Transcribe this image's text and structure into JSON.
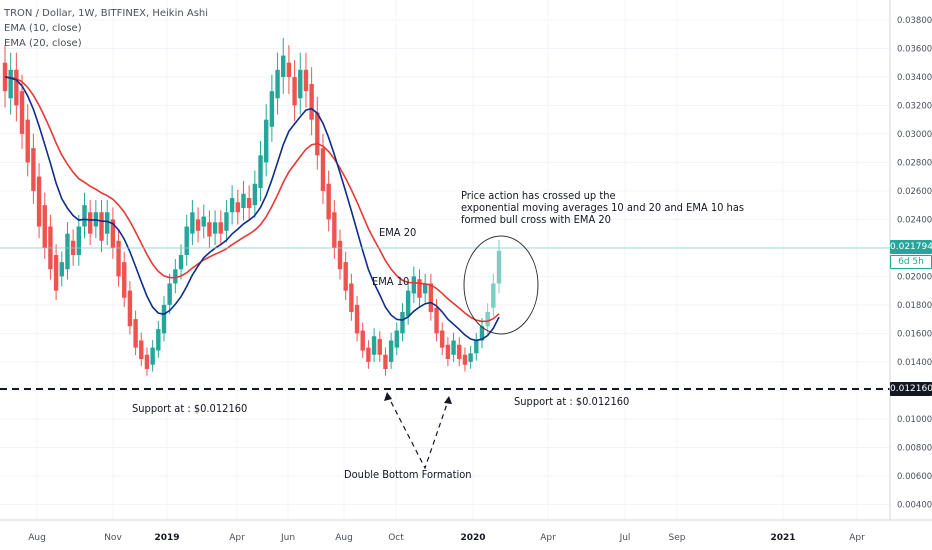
{
  "legend": {
    "symbol": "TRON / Dollar, 1W, BITFINEX, Heikin Ashi",
    "ema1": "EMA (10, close)",
    "ema2": "EMA (20, close)"
  },
  "chart_data": {
    "type": "candlestick",
    "title": "TRON / Dollar, 1W, BITFINEX, Heikin Ashi",
    "ylim": [
      0.0029,
      0.0394
    ],
    "y_ticks": [
      "0.004000",
      "0.006000",
      "0.008000",
      "0.010000",
      "0.012000",
      "0.014000",
      "0.016000",
      "0.018000",
      "0.020000",
      "0.022000",
      "0.024000",
      "0.026000",
      "0.028000",
      "0.030000",
      "0.032000",
      "0.034000",
      "0.036000",
      "0.038000"
    ],
    "x_ticks": [
      "Aug",
      "Nov",
      "2019",
      "Apr",
      "Jun",
      "Aug",
      "Oct",
      "2020",
      "Apr",
      "Jul",
      "Sep",
      "2021",
      "Apr"
    ],
    "current_price": "0.021794",
    "countdown": "6d 5h",
    "support_level": "0.012160",
    "candle_colors": {
      "up": "#26a69a",
      "down": "#ef5350",
      "up_recent": "#80cbc4"
    },
    "ema10_color": "#0d2e8a",
    "ema20_color": "#e53935",
    "candles": [
      {
        "o": 0.035,
        "c": 0.033
      },
      {
        "o": 0.0325,
        "c": 0.0345
      },
      {
        "o": 0.0345,
        "c": 0.032
      },
      {
        "o": 0.033,
        "c": 0.03
      },
      {
        "o": 0.031,
        "c": 0.028
      },
      {
        "o": 0.029,
        "c": 0.026
      },
      {
        "o": 0.027,
        "c": 0.0235
      },
      {
        "o": 0.025,
        "c": 0.022
      },
      {
        "o": 0.0235,
        "c": 0.0205
      },
      {
        "o": 0.0215,
        "c": 0.019
      },
      {
        "o": 0.02,
        "c": 0.021
      },
      {
        "o": 0.0205,
        "c": 0.023
      },
      {
        "o": 0.0225,
        "c": 0.0215
      },
      {
        "o": 0.0215,
        "c": 0.0235
      },
      {
        "o": 0.0235,
        "c": 0.025
      },
      {
        "o": 0.0245,
        "c": 0.023
      },
      {
        "o": 0.0235,
        "c": 0.0245
      },
      {
        "o": 0.0245,
        "c": 0.0225
      },
      {
        "o": 0.023,
        "c": 0.0245
      },
      {
        "o": 0.024,
        "c": 0.022
      },
      {
        "o": 0.0225,
        "c": 0.02
      },
      {
        "o": 0.021,
        "c": 0.0185
      },
      {
        "o": 0.019,
        "c": 0.0165
      },
      {
        "o": 0.017,
        "c": 0.015
      },
      {
        "o": 0.0155,
        "c": 0.0142
      },
      {
        "o": 0.0145,
        "c": 0.0135
      },
      {
        "o": 0.0138,
        "c": 0.015
      },
      {
        "o": 0.0148,
        "c": 0.0163
      },
      {
        "o": 0.016,
        "c": 0.018
      },
      {
        "o": 0.018,
        "c": 0.0195
      },
      {
        "o": 0.0195,
        "c": 0.0205
      },
      {
        "o": 0.0205,
        "c": 0.0215
      },
      {
        "o": 0.0215,
        "c": 0.0235
      },
      {
        "o": 0.023,
        "c": 0.0245
      },
      {
        "o": 0.024,
        "c": 0.0232
      },
      {
        "o": 0.0235,
        "c": 0.0242
      },
      {
        "o": 0.0238,
        "c": 0.0228
      },
      {
        "o": 0.023,
        "c": 0.0238
      },
      {
        "o": 0.0238,
        "c": 0.023
      },
      {
        "o": 0.0232,
        "c": 0.0245
      },
      {
        "o": 0.0245,
        "c": 0.0255
      },
      {
        "o": 0.0252,
        "c": 0.0245
      },
      {
        "o": 0.0248,
        "c": 0.0258
      },
      {
        "o": 0.0255,
        "c": 0.0248
      },
      {
        "o": 0.025,
        "c": 0.0265
      },
      {
        "o": 0.0262,
        "c": 0.0285
      },
      {
        "o": 0.028,
        "c": 0.031
      },
      {
        "o": 0.0305,
        "c": 0.033
      },
      {
        "o": 0.0325,
        "c": 0.0345
      },
      {
        "o": 0.034,
        "c": 0.0355
      },
      {
        "o": 0.035,
        "c": 0.034
      },
      {
        "o": 0.034,
        "c": 0.032
      },
      {
        "o": 0.0325,
        "c": 0.0345
      },
      {
        "o": 0.0345,
        "c": 0.033
      },
      {
        "o": 0.0335,
        "c": 0.031
      },
      {
        "o": 0.0315,
        "c": 0.0285
      },
      {
        "o": 0.029,
        "c": 0.026
      },
      {
        "o": 0.0265,
        "c": 0.024
      },
      {
        "o": 0.0245,
        "c": 0.022
      },
      {
        "o": 0.0225,
        "c": 0.0205
      },
      {
        "o": 0.021,
        "c": 0.019
      },
      {
        "o": 0.0195,
        "c": 0.0175
      },
      {
        "o": 0.018,
        "c": 0.016
      },
      {
        "o": 0.0162,
        "c": 0.0148
      },
      {
        "o": 0.015,
        "c": 0.014
      },
      {
        "o": 0.0145,
        "c": 0.0158
      },
      {
        "o": 0.0156,
        "c": 0.0145
      },
      {
        "o": 0.0145,
        "c": 0.0135
      },
      {
        "o": 0.014,
        "c": 0.0155
      },
      {
        "o": 0.015,
        "c": 0.0162
      },
      {
        "o": 0.016,
        "c": 0.0175
      },
      {
        "o": 0.0172,
        "c": 0.019
      },
      {
        "o": 0.0188,
        "c": 0.02
      },
      {
        "o": 0.0198,
        "c": 0.0185
      },
      {
        "o": 0.0188,
        "c": 0.0195
      },
      {
        "o": 0.0195,
        "c": 0.0175
      },
      {
        "o": 0.0178,
        "c": 0.016
      },
      {
        "o": 0.0162,
        "c": 0.015
      },
      {
        "o": 0.0152,
        "c": 0.0142
      },
      {
        "o": 0.0145,
        "c": 0.0155
      },
      {
        "o": 0.0152,
        "c": 0.0142
      },
      {
        "o": 0.0145,
        "c": 0.0138
      },
      {
        "o": 0.014,
        "c": 0.0146
      },
      {
        "o": 0.0146,
        "c": 0.0155
      },
      {
        "o": 0.0155,
        "c": 0.0165
      },
      {
        "o": 0.0165,
        "c": 0.0175
      },
      {
        "o": 0.0178,
        "c": 0.0195
      },
      {
        "o": 0.0195,
        "c": 0.0218
      }
    ]
  },
  "annotations": {
    "price_action_line1": "Price action has crossed up the",
    "price_action_line2": "exponential moving averages 10 and 20 and EMA 10 has",
    "price_action_line3": "formed bull cross with EMA 20",
    "ema20": "EMA 20",
    "ema10": "EMA 10",
    "support_left": "Support at : $0.012160",
    "support_right": "Support at : $0.012160",
    "double_bottom": "Double Bottom Formation"
  }
}
